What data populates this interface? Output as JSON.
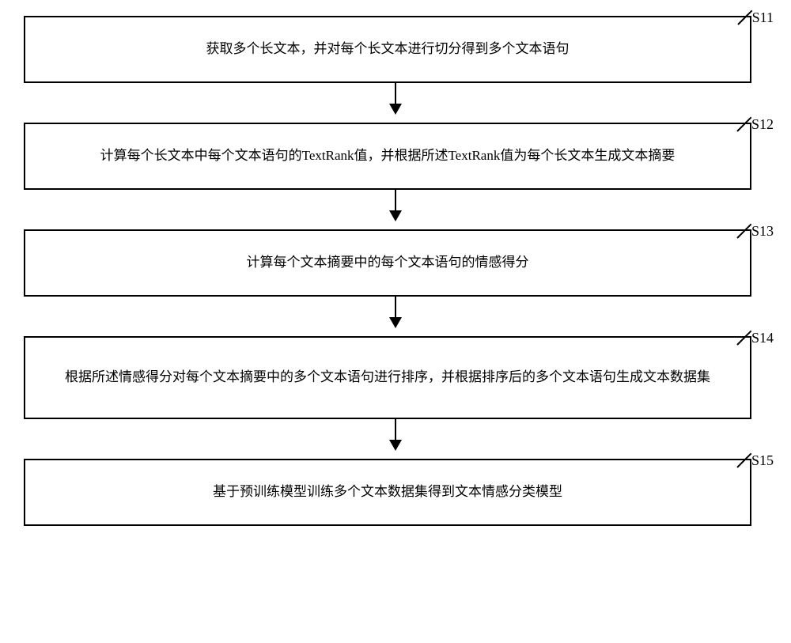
{
  "flowchart": {
    "type": "flowchart",
    "direction": "vertical",
    "box_border_color": "#000000",
    "box_border_width": 2,
    "box_background": "#ffffff",
    "text_color": "#000000",
    "font_size": 17,
    "arrow_color": "#000000",
    "steps": [
      {
        "id": "S11",
        "text": "获取多个长文本，并对每个长文本进行切分得到多个文本语句"
      },
      {
        "id": "S12",
        "text": "计算每个长文本中每个文本语句的TextRank值，并根据所述TextRank值为每个长文本生成文本摘要"
      },
      {
        "id": "S13",
        "text": "计算每个文本摘要中的每个文本语句的情感得分"
      },
      {
        "id": "S14",
        "text": "根据所述情感得分对每个文本摘要中的多个文本语句进行排序，并根据排序后的多个文本语句生成文本数据集"
      },
      {
        "id": "S15",
        "text": "基于预训练模型训练多个文本数据集得到文本情感分类模型"
      }
    ]
  }
}
